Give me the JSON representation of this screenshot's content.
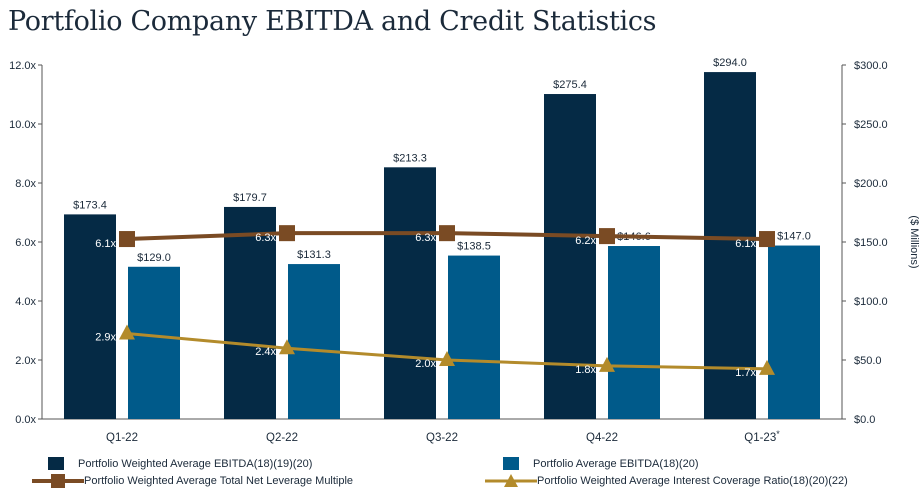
{
  "title": "Portfolio Company EBITDA and Credit Statistics",
  "colors": {
    "ebitda_weighted": "#052a45",
    "ebitda_average": "#005a8a",
    "leverage": "#7a4b24",
    "coverage": "#b38b2b"
  },
  "chart_data": {
    "type": "bar",
    "categories": [
      "Q1-22",
      "Q2-22",
      "Q3-22",
      "Q4-22",
      "Q1-23"
    ],
    "category_suffix": [
      "",
      "",
      "",
      "",
      "*"
    ],
    "left_axis": {
      "ylim": [
        0,
        12
      ],
      "ticks": [
        "0.0x",
        "2.0x",
        "4.0x",
        "6.0x",
        "8.0x",
        "10.0x",
        "12.0x"
      ]
    },
    "right_axis": {
      "ylabel": "($ Millions)",
      "ylim": [
        0,
        300
      ],
      "ticks": [
        "$0.0",
        "$50.0",
        "$100.0",
        "$150.0",
        "$200.0",
        "$250.0",
        "$300.0"
      ]
    },
    "series": [
      {
        "name": "Portfolio Weighted Average EBITDA(18)(19)(20)",
        "type": "bar",
        "axis": "right",
        "values": [
          173.4,
          179.7,
          213.3,
          275.4,
          294.0
        ],
        "labels": [
          "$173.4",
          "$179.7",
          "$213.3",
          "$275.4",
          "$294.0"
        ]
      },
      {
        "name": "Portfolio Average EBITDA(18)(20)",
        "type": "bar",
        "axis": "right",
        "values": [
          129.0,
          131.3,
          138.5,
          146.6,
          147.0
        ],
        "labels": [
          "$129.0",
          "$131.3",
          "$138.5",
          "$146.6",
          "$147.0"
        ]
      },
      {
        "name": "Portfolio Weighted Average Total Net Leverage Multiple",
        "type": "line",
        "axis": "left",
        "marker": "square",
        "values": [
          6.1,
          6.3,
          6.3,
          6.2,
          6.1
        ],
        "labels": [
          "6.1x",
          "6.3x",
          "6.3x",
          "6.2x",
          "6.1x"
        ]
      },
      {
        "name": "Portfolio Weighted Average Interest Coverage Ratio(18)(20)(22)",
        "type": "line",
        "axis": "left",
        "marker": "triangle",
        "values": [
          2.9,
          2.4,
          2.0,
          1.8,
          1.7
        ],
        "labels": [
          "2.9x",
          "2.4x",
          "2.0x",
          "1.8x",
          "1.7x"
        ]
      }
    ],
    "legend_position": "bottom"
  }
}
